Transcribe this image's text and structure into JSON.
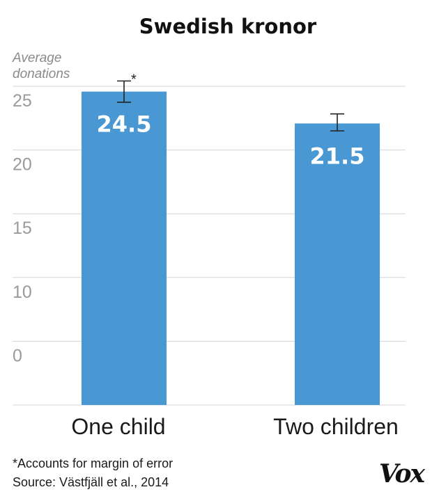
{
  "chart_data": {
    "type": "bar",
    "title": "Swedish kronor",
    "ylabel_lines": [
      "Average",
      "donations"
    ],
    "categories": [
      "One child",
      "Two children"
    ],
    "values": [
      24.5,
      21.5
    ],
    "data_labels": [
      "24.5",
      "21.5"
    ],
    "error_bars": [
      {
        "low": 23.5,
        "high": 25.5
      },
      {
        "low": 20.8,
        "high": 22.4
      }
    ],
    "annotations": [
      {
        "category_index": 0,
        "text": "*"
      }
    ],
    "yticks": [
      25,
      20,
      15,
      10,
      0
    ],
    "ylim": [
      -5,
      25
    ],
    "gridlines": true,
    "bar_color": "#4a98d3"
  },
  "footnotes": {
    "note": "*Accounts for margin of error",
    "source": "Source: Västfjäll et al., 2014"
  },
  "brand": {
    "logo_text": "Vox"
  }
}
